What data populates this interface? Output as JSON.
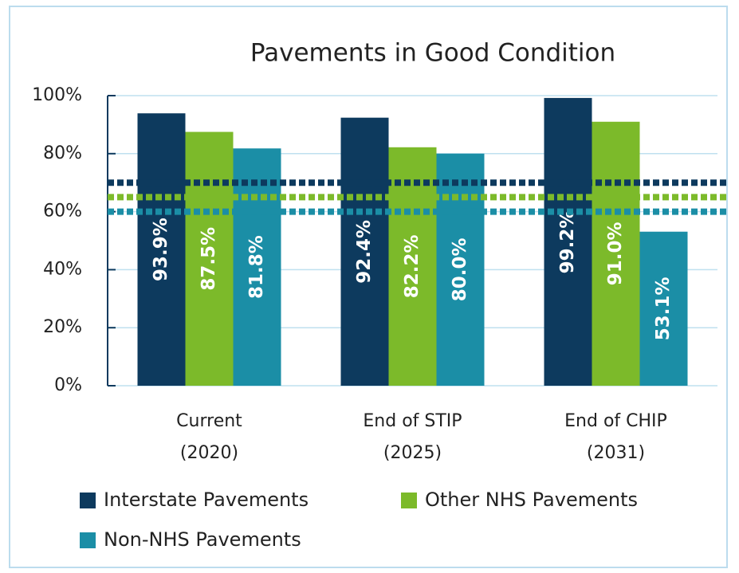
{
  "chart_data": {
    "type": "bar",
    "title": "Pavements in Good Condition",
    "categories": [
      [
        "Current",
        "(2020)"
      ],
      [
        "End of STIP",
        "(2025)"
      ],
      [
        "End of CHIP",
        "(2031)"
      ]
    ],
    "series": [
      {
        "name": "Interstate Pavements",
        "color": "#0d3a5e",
        "values": [
          93.9,
          92.4,
          99.2
        ],
        "value_labels": [
          "93.9%",
          "92.4%",
          "99.2%"
        ]
      },
      {
        "name": "Other NHS Pavements",
        "color": "#7cba2a",
        "values": [
          87.5,
          82.2,
          91.0
        ],
        "value_labels": [
          "87.5%",
          "82.2%",
          "91.0%"
        ]
      },
      {
        "name": "Non-NHS Pavements",
        "color": "#1b8ea6",
        "values": [
          81.8,
          80.0,
          53.1
        ],
        "value_labels": [
          "81.8%",
          "80.0%",
          "53.1%"
        ]
      }
    ],
    "ylim": [
      0,
      100
    ],
    "yticks": [
      {
        "value": 0,
        "label": "0%"
      },
      {
        "value": 20,
        "label": "20%"
      },
      {
        "value": 40,
        "label": "40%"
      },
      {
        "value": 60,
        "label": "60%"
      },
      {
        "value": 80,
        "label": "80%"
      },
      {
        "value": 100,
        "label": "100%"
      }
    ],
    "grid": true,
    "reference_lines": [
      {
        "value": 70,
        "color": "#0d3a5e"
      },
      {
        "value": 65,
        "color": "#7cba2a"
      },
      {
        "value": 60,
        "color": "#1b8ea6"
      }
    ]
  }
}
